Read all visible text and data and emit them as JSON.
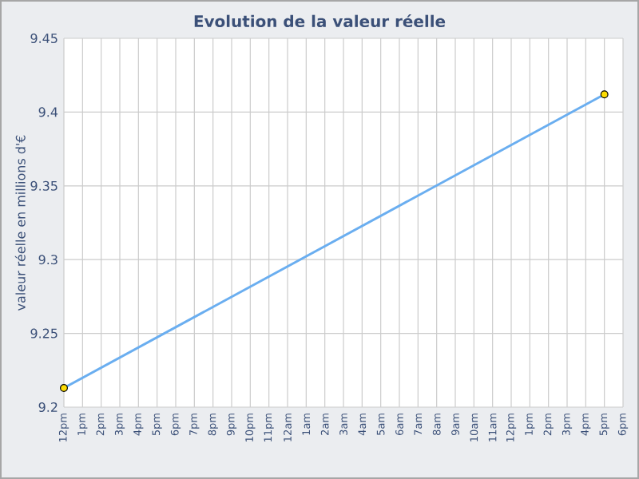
{
  "chart_data": {
    "type": "line",
    "title": "Evolution de la valeur réelle",
    "ylabel": "valeur réelle en millions d'€",
    "categories": [
      "12pm",
      "1pm",
      "2pm",
      "3pm",
      "4pm",
      "5pm",
      "6pm",
      "7pm",
      "8pm",
      "9pm",
      "10pm",
      "11pm",
      "12am",
      "1am",
      "2am",
      "3am",
      "4am",
      "5am",
      "6am",
      "7am",
      "8am",
      "9am",
      "10am",
      "11am",
      "12pm",
      "1pm",
      "2pm",
      "3pm",
      "4pm",
      "5pm",
      "6pm"
    ],
    "series": [
      {
        "color": "#6aaef0",
        "values": [
          9.213,
          null,
          null,
          null,
          null,
          null,
          null,
          null,
          null,
          null,
          null,
          null,
          null,
          null,
          null,
          null,
          null,
          null,
          null,
          null,
          null,
          null,
          null,
          null,
          null,
          null,
          null,
          null,
          null,
          9.412,
          null
        ]
      }
    ],
    "marker": "circle",
    "grid": true,
    "ylim": [
      9.2,
      9.45
    ],
    "yticks": [
      9.2,
      9.25,
      9.3,
      9.35,
      9.4,
      9.45
    ]
  }
}
